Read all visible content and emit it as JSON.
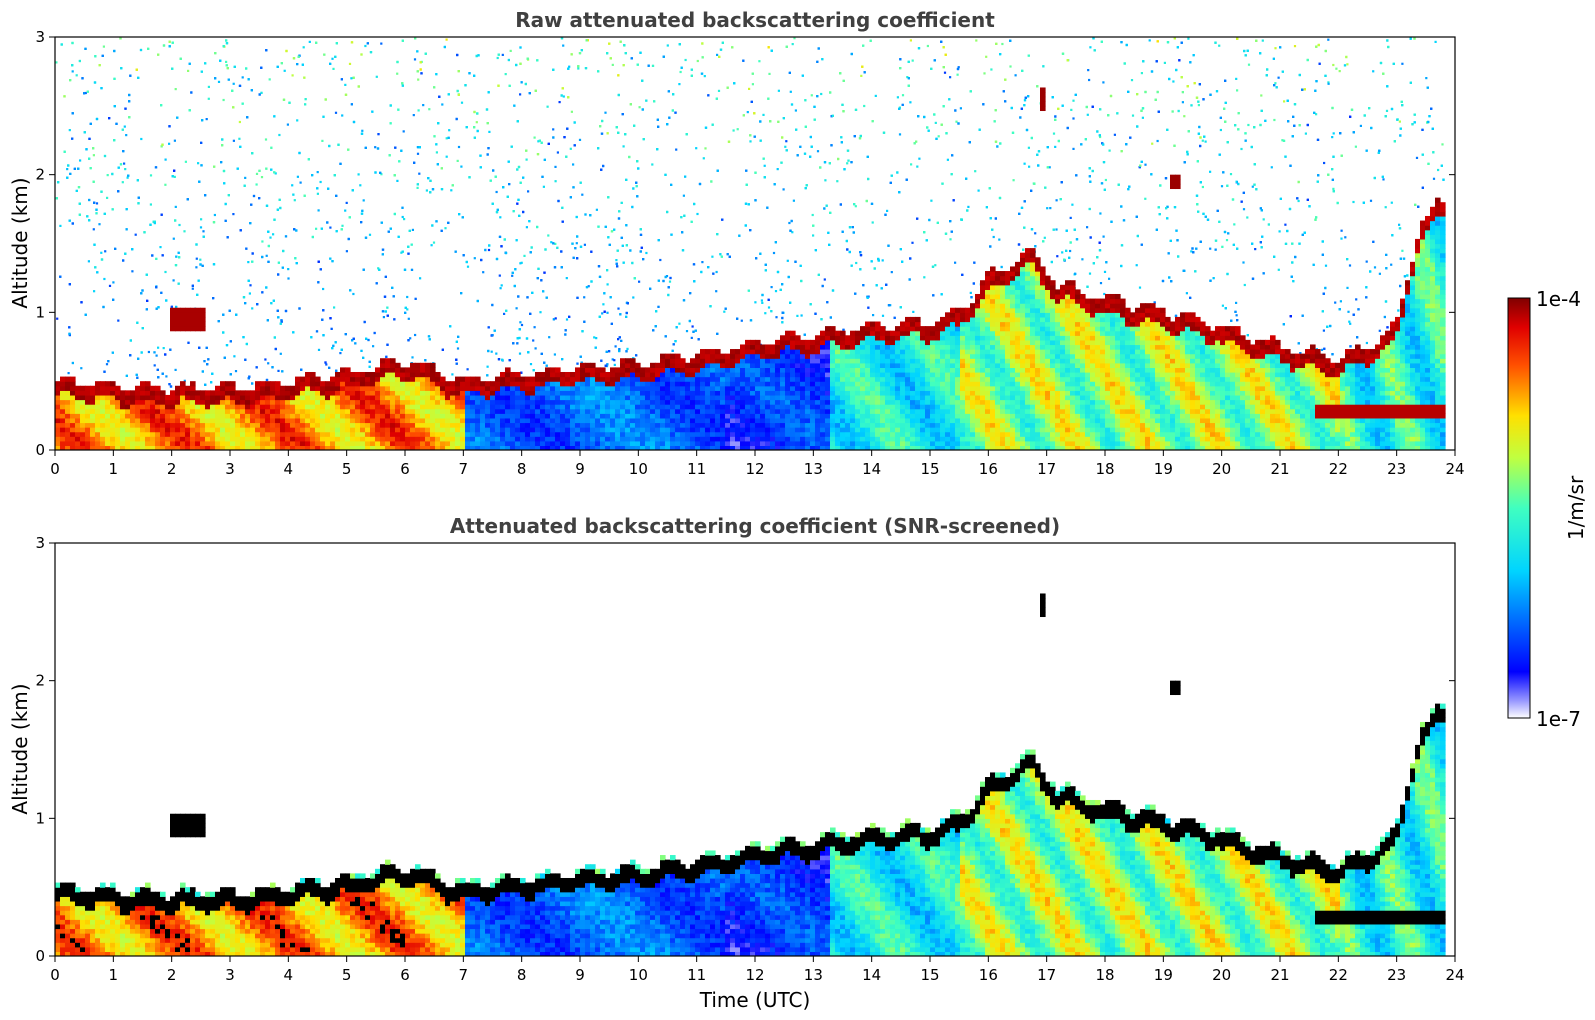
{
  "chart_data": [
    {
      "type": "heatmap",
      "title": "Raw attenuated backscattering coefficient",
      "xlabel": "",
      "ylabel": "Altitude (km)",
      "xlim": [
        0,
        24
      ],
      "ylim": [
        0,
        3
      ],
      "xticks": [
        "0",
        "1",
        "2",
        "3",
        "4",
        "5",
        "6",
        "7",
        "8",
        "9",
        "10",
        "11",
        "12",
        "13",
        "14",
        "15",
        "16",
        "17",
        "18",
        "19",
        "20",
        "21",
        "22",
        "23",
        "24"
      ],
      "yticks": [
        "0",
        "1",
        "2",
        "3"
      ],
      "screened": false,
      "features": {
        "boundary_layer_top_km": [
          [
            0,
            0.45
          ],
          [
            1,
            0.42
          ],
          [
            2,
            0.4
          ],
          [
            3,
            0.4
          ],
          [
            4,
            0.45
          ],
          [
            5,
            0.5
          ],
          [
            6,
            0.6
          ],
          [
            7,
            0.45
          ],
          [
            8,
            0.5
          ],
          [
            9,
            0.55
          ],
          [
            10,
            0.58
          ],
          [
            11,
            0.63
          ],
          [
            12,
            0.72
          ],
          [
            13,
            0.78
          ],
          [
            14,
            0.85
          ],
          [
            15,
            0.88
          ],
          [
            15.5,
            0.95
          ],
          [
            16,
            1.2
          ],
          [
            16.7,
            1.4
          ],
          [
            17.2,
            1.15
          ],
          [
            18,
            1.05
          ],
          [
            19,
            0.95
          ],
          [
            20,
            0.85
          ],
          [
            21,
            0.7
          ],
          [
            21.5,
            0.65
          ],
          [
            22,
            0.62
          ],
          [
            22.5,
            0.7
          ],
          [
            23,
            0.85
          ],
          [
            23.4,
            1.6
          ],
          [
            23.8,
            1.75
          ]
        ],
        "elevated_cloud_2h_km": [
          2.0,
          2.6,
          0.95
        ],
        "cloud_17h_km": [
          16.85,
          16.95,
          2.55
        ],
        "cloud_19h_km": [
          19.15,
          19.25,
          1.95
        ],
        "low_layer_22h_km": [
          21.6,
          23.8,
          0.28
        ]
      }
    },
    {
      "type": "heatmap",
      "title": "Attenuated backscattering coefficient (SNR-screened)",
      "xlabel": "Time (UTC)",
      "ylabel": "Altitude (km)",
      "xlim": [
        0,
        24
      ],
      "ylim": [
        0,
        3
      ],
      "xticks": [
        "0",
        "1",
        "2",
        "3",
        "4",
        "5",
        "6",
        "7",
        "8",
        "9",
        "10",
        "11",
        "12",
        "13",
        "14",
        "15",
        "16",
        "17",
        "18",
        "19",
        "20",
        "21",
        "22",
        "23",
        "24"
      ],
      "yticks": [
        "0",
        "1",
        "2",
        "3"
      ],
      "screened": true
    }
  ],
  "colorbar": {
    "label": "1/m/sr",
    "max_label": "1e-4",
    "min_label": "1e-7",
    "colormap": "jet",
    "range": [
      1e-07,
      0.0001
    ]
  }
}
